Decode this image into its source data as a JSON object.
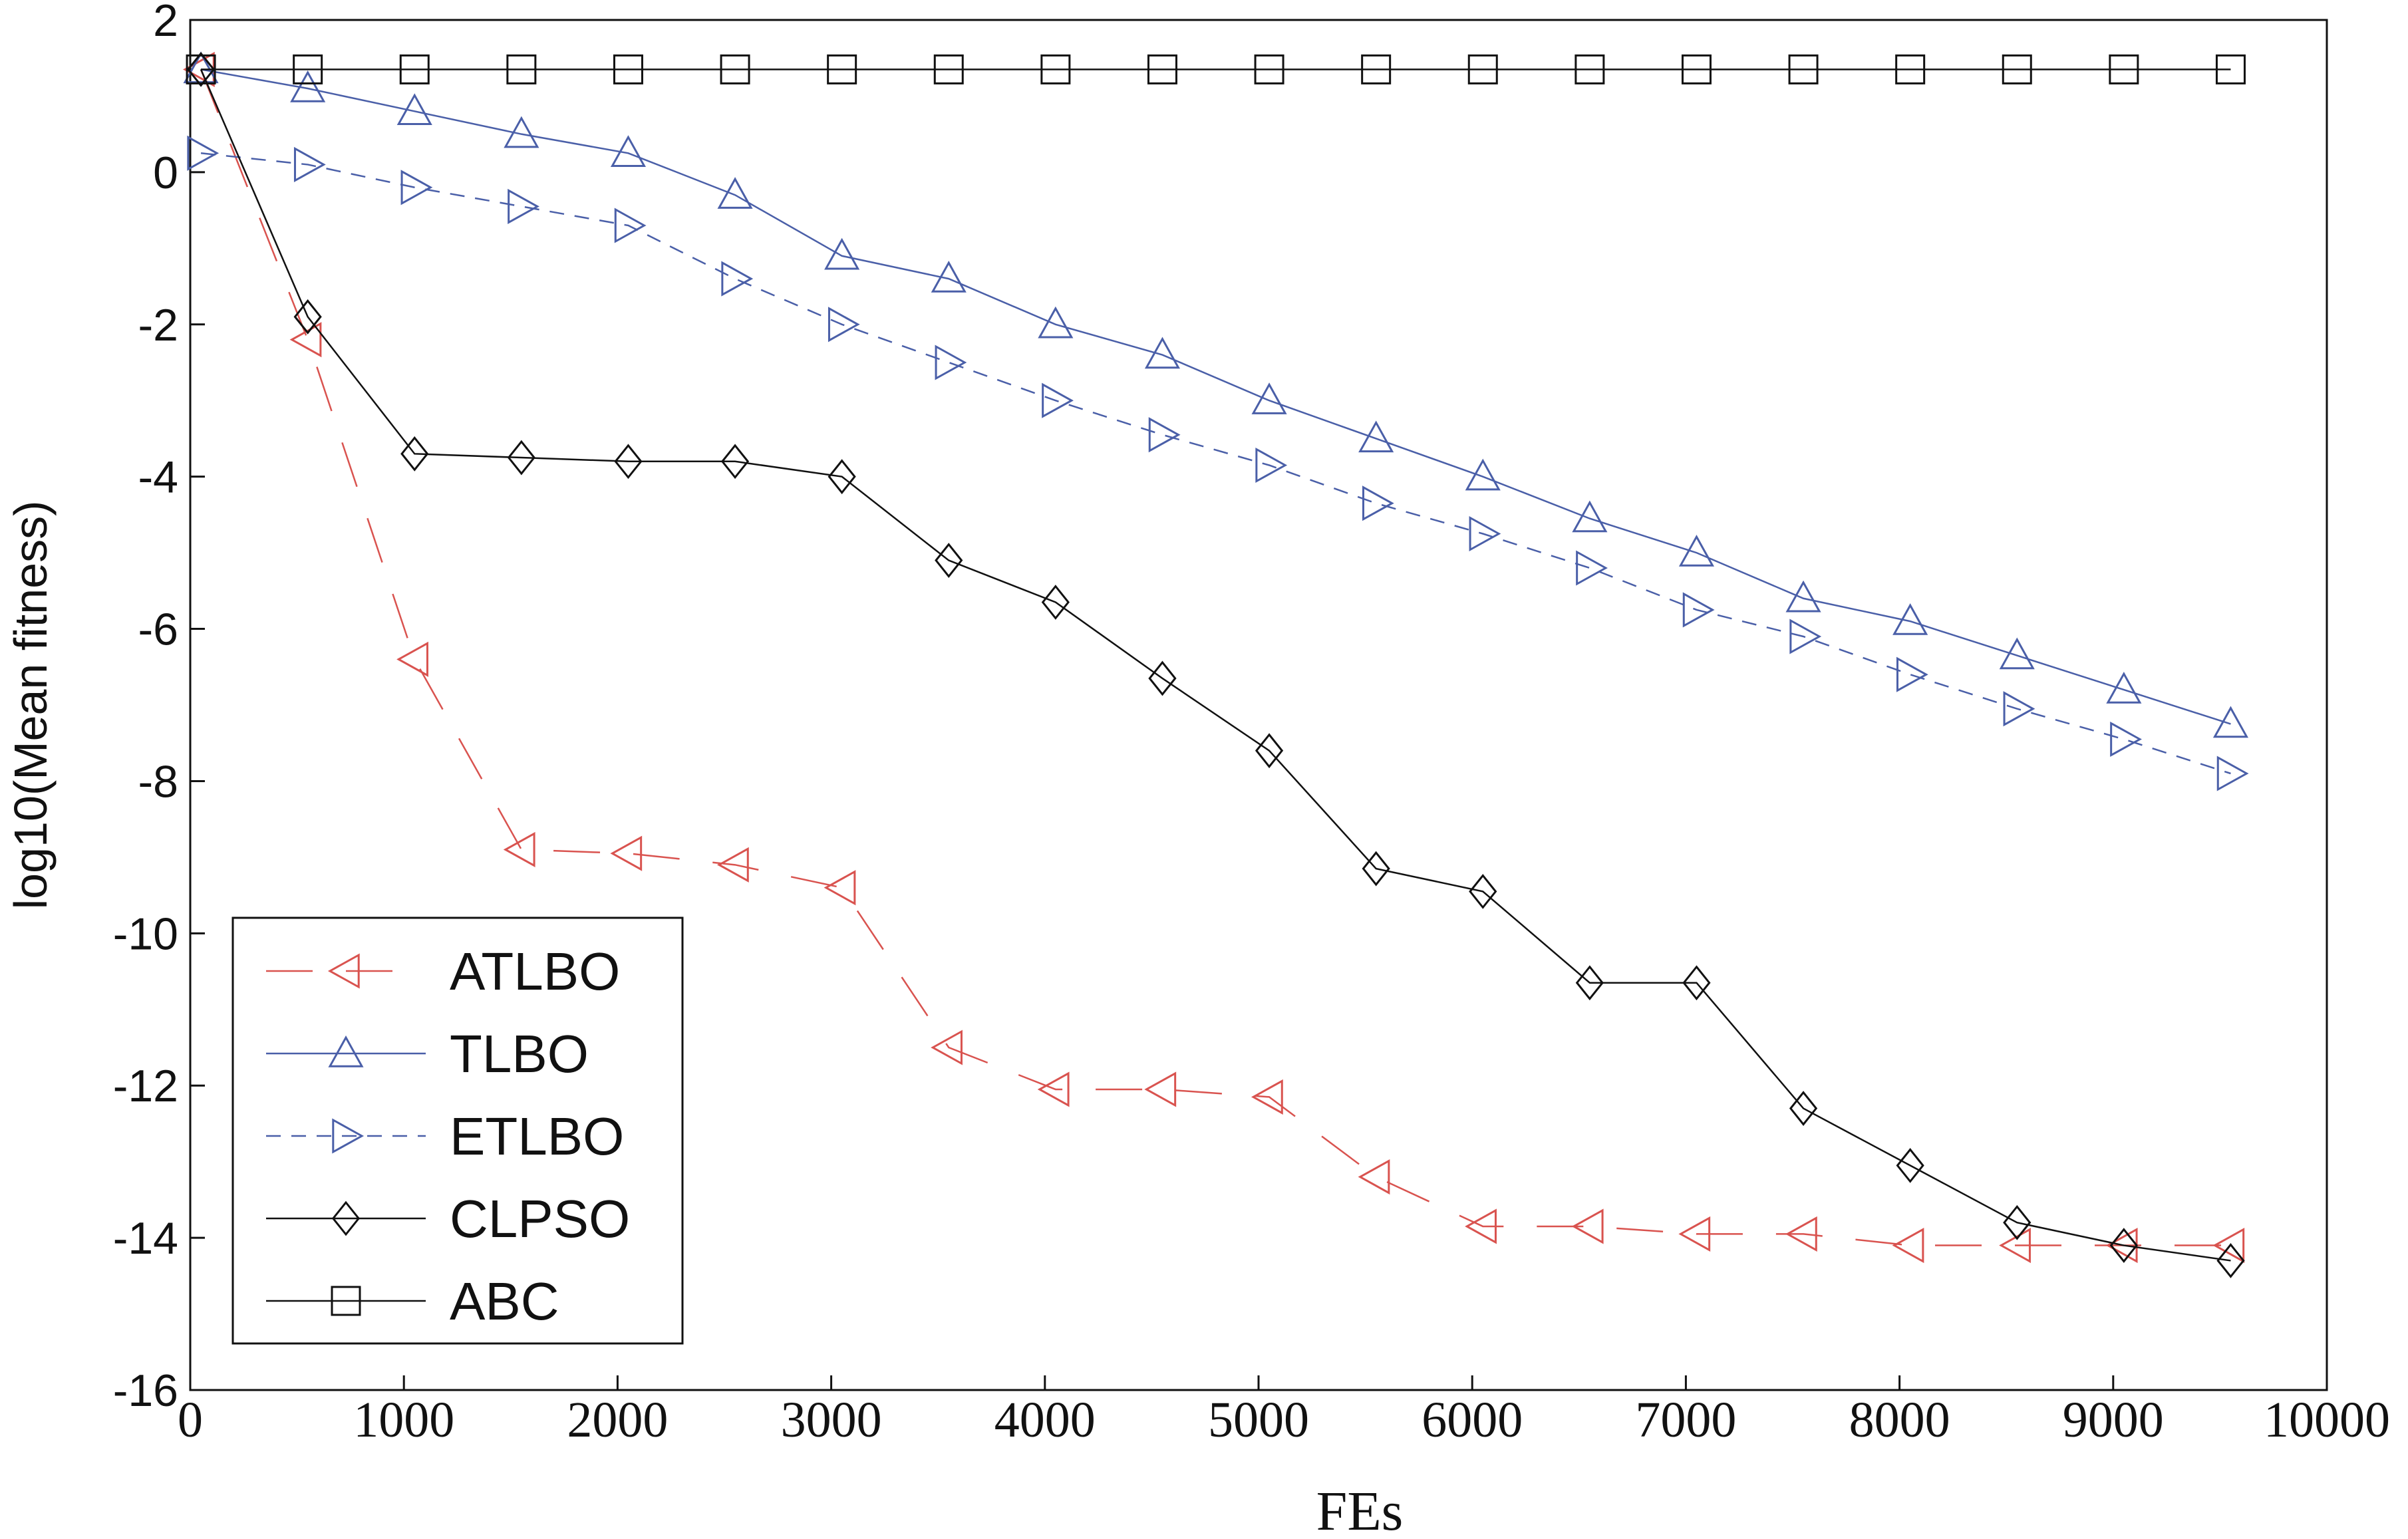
{
  "chart_data": {
    "type": "line",
    "xlabel": "FEs",
    "ylabel": "log10(Mean fitness)",
    "xlim": [
      0,
      10000
    ],
    "ylim": [
      -16,
      2
    ],
    "xticks": [
      0,
      1000,
      2000,
      3000,
      4000,
      5000,
      6000,
      7000,
      8000,
      9000,
      10000
    ],
    "yticks": [
      2,
      0,
      -2,
      -4,
      -6,
      -8,
      -10,
      -12,
      -14,
      -16
    ],
    "grid": false,
    "legend_position": "bottom-left",
    "x": [
      50,
      550,
      1050,
      1550,
      2050,
      2550,
      3050,
      3550,
      4050,
      4550,
      5050,
      5550,
      6050,
      6550,
      7050,
      7550,
      8050,
      8550,
      9050,
      9550
    ],
    "series": [
      {
        "name": "ATLBO",
        "color": "#d9534f",
        "dash": "long-dash",
        "marker": "triangle-left",
        "values": [
          1.35,
          -2.2,
          -6.4,
          -8.9,
          -8.95,
          -9.1,
          -9.4,
          -11.5,
          -12.05,
          -12.05,
          -12.15,
          -13.2,
          -13.85,
          -13.85,
          -13.95,
          -13.95,
          -14.1,
          -14.1,
          -14.1,
          -14.1
        ]
      },
      {
        "name": "TLBO",
        "color": "#4a5fa8",
        "dash": "solid",
        "marker": "triangle-up",
        "values": [
          1.35,
          1.1,
          0.8,
          0.5,
          0.25,
          -0.3,
          -1.1,
          -1.4,
          -2.0,
          -2.4,
          -3.0,
          -3.5,
          -4.0,
          -4.55,
          -5.0,
          -5.6,
          -5.9,
          -6.35,
          -6.8,
          -7.25
        ]
      },
      {
        "name": "ETLBO",
        "color": "#4a5fa8",
        "dash": "dashed",
        "marker": "triangle-right",
        "values": [
          0.25,
          0.1,
          -0.2,
          -0.45,
          -0.7,
          -1.4,
          -2.0,
          -2.5,
          -3.0,
          -3.45,
          -3.85,
          -4.35,
          -4.75,
          -5.2,
          -5.75,
          -6.1,
          -6.6,
          -7.05,
          -7.45,
          -7.9
        ]
      },
      {
        "name": "CLPSO",
        "color": "#111111",
        "dash": "solid",
        "marker": "diamond",
        "values": [
          1.35,
          -1.9,
          -3.7,
          -3.75,
          -3.8,
          -3.8,
          -4.0,
          -5.1,
          -5.65,
          -6.65,
          -7.6,
          -9.15,
          -9.45,
          -10.65,
          -10.65,
          -12.3,
          -13.05,
          -13.8,
          -14.1,
          -14.3
        ]
      },
      {
        "name": "ABC",
        "color": "#111111",
        "dash": "solid",
        "marker": "square",
        "values": [
          1.35,
          1.35,
          1.35,
          1.35,
          1.35,
          1.35,
          1.35,
          1.35,
          1.35,
          1.35,
          1.35,
          1.35,
          1.35,
          1.35,
          1.35,
          1.35,
          1.35,
          1.35,
          1.35,
          1.35
        ]
      }
    ]
  }
}
